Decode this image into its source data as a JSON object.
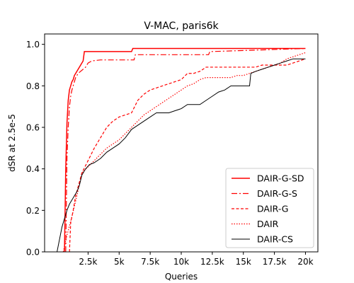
{
  "chart_data": {
    "type": "line",
    "title": "V-MAC, paris6k",
    "xlabel": "Queries",
    "ylabel": "dSR at 2.5e-5",
    "xlim": [
      -1000,
      21000
    ],
    "ylim": [
      0.0,
      1.05
    ],
    "x_ticks": [
      {
        "value": 2500,
        "label": "2.5k"
      },
      {
        "value": 5000,
        "label": "5k"
      },
      {
        "value": 7500,
        "label": "7.5k"
      },
      {
        "value": 10000,
        "label": "10k"
      },
      {
        "value": 12500,
        "label": "12.5k"
      },
      {
        "value": 15000,
        "label": "15k"
      },
      {
        "value": 17500,
        "label": "17.5k"
      },
      {
        "value": 20000,
        "label": "20k"
      }
    ],
    "y_ticks": [
      {
        "value": 0.0,
        "label": "0.0"
      },
      {
        "value": 0.2,
        "label": "0.2"
      },
      {
        "value": 0.4,
        "label": "0.4"
      },
      {
        "value": 0.6,
        "label": "0.6"
      },
      {
        "value": 0.8,
        "label": "0.8"
      },
      {
        "value": 1.0,
        "label": "1.0"
      }
    ],
    "grid": false,
    "legend_position": "lower right",
    "series": [
      {
        "name": "DAIR-G-SD",
        "color": "#ff0000",
        "dash": "solid",
        "width": 1.5,
        "x": [
          600,
          700,
          800,
          900,
          1000,
          1100,
          1200,
          1300,
          1400,
          1500,
          1700,
          1900,
          2100,
          2200,
          6000,
          6100,
          20000
        ],
        "y": [
          0.0,
          0.4,
          0.62,
          0.73,
          0.78,
          0.8,
          0.82,
          0.83,
          0.85,
          0.86,
          0.88,
          0.9,
          0.92,
          0.965,
          0.965,
          0.98,
          0.98
        ]
      },
      {
        "name": "DAIR-G-S",
        "color": "#ff0000",
        "dash": "8,3,2,3",
        "width": 1.2,
        "x": [
          700,
          800,
          900,
          1000,
          1100,
          1200,
          1300,
          1400,
          1500,
          1700,
          1900,
          2100,
          2300,
          2500,
          2800,
          3500,
          6200,
          6300,
          12200,
          12300,
          20000
        ],
        "y": [
          0.0,
          0.45,
          0.6,
          0.7,
          0.75,
          0.78,
          0.8,
          0.82,
          0.84,
          0.86,
          0.87,
          0.88,
          0.89,
          0.91,
          0.92,
          0.925,
          0.925,
          0.95,
          0.95,
          0.965,
          0.98
        ]
      },
      {
        "name": "DAIR-G",
        "color": "#ff0000",
        "dash": "4,2.5",
        "width": 1.2,
        "x": [
          1000,
          1100,
          1300,
          1500,
          2000,
          2500,
          3000,
          3500,
          4000,
          4500,
          5000,
          5500,
          6000,
          6500,
          7000,
          7500,
          8000,
          8500,
          9000,
          9500,
          10000,
          10500,
          11000,
          11500,
          12000,
          12500,
          13000,
          13500,
          14000,
          14500,
          15000,
          15500,
          16000,
          16500,
          17000,
          17500,
          18000,
          18500,
          19000,
          19500,
          20000
        ],
        "y": [
          0.0,
          0.14,
          0.2,
          0.27,
          0.38,
          0.44,
          0.5,
          0.55,
          0.6,
          0.63,
          0.65,
          0.66,
          0.67,
          0.73,
          0.76,
          0.78,
          0.79,
          0.8,
          0.81,
          0.82,
          0.83,
          0.86,
          0.86,
          0.87,
          0.89,
          0.89,
          0.89,
          0.89,
          0.89,
          0.89,
          0.89,
          0.89,
          0.89,
          0.9,
          0.9,
          0.9,
          0.9,
          0.9,
          0.91,
          0.92,
          0.93
        ]
      },
      {
        "name": "DAIR",
        "color": "#ff0000",
        "dash": "1.5,2",
        "width": 1.2,
        "x": [
          500,
          800,
          1200,
          1600,
          2000,
          2500,
          3000,
          3500,
          4000,
          4500,
          5000,
          5500,
          6000,
          6500,
          7000,
          7500,
          8000,
          8500,
          9000,
          9500,
          10000,
          10500,
          11000,
          11500,
          12000,
          12500,
          13000,
          13500,
          14000,
          14500,
          15000,
          15500,
          16000,
          16500,
          17000,
          17500,
          18000,
          18500,
          19000,
          19500,
          20000
        ],
        "y": [
          0.0,
          0.08,
          0.17,
          0.27,
          0.38,
          0.41,
          0.44,
          0.47,
          0.5,
          0.52,
          0.54,
          0.57,
          0.6,
          0.63,
          0.66,
          0.68,
          0.7,
          0.72,
          0.74,
          0.76,
          0.78,
          0.8,
          0.81,
          0.83,
          0.84,
          0.84,
          0.84,
          0.84,
          0.84,
          0.85,
          0.85,
          0.86,
          0.87,
          0.88,
          0.89,
          0.9,
          0.91,
          0.93,
          0.94,
          0.95,
          0.96
        ]
      },
      {
        "name": "DAIR-CS",
        "color": "#000000",
        "dash": "solid",
        "width": 1.0,
        "x": [
          0,
          200,
          400,
          600,
          800,
          1000,
          1200,
          1400,
          1600,
          1800,
          2000,
          2300,
          2600,
          3000,
          3500,
          4000,
          4500,
          5000,
          5500,
          6000,
          6500,
          7000,
          7500,
          8000,
          8500,
          9000,
          9500,
          10000,
          10500,
          11000,
          11500,
          12000,
          12500,
          13000,
          13500,
          14000,
          14500,
          15000,
          15500,
          15600,
          16000,
          16500,
          17000,
          17500,
          18000,
          18500,
          19000,
          19500,
          20000
        ],
        "y": [
          0.0,
          0.06,
          0.12,
          0.16,
          0.2,
          0.23,
          0.25,
          0.27,
          0.29,
          0.32,
          0.37,
          0.4,
          0.42,
          0.43,
          0.45,
          0.48,
          0.5,
          0.52,
          0.55,
          0.59,
          0.61,
          0.63,
          0.65,
          0.67,
          0.67,
          0.67,
          0.68,
          0.69,
          0.71,
          0.71,
          0.71,
          0.73,
          0.75,
          0.77,
          0.78,
          0.8,
          0.8,
          0.8,
          0.8,
          0.86,
          0.87,
          0.88,
          0.89,
          0.9,
          0.91,
          0.92,
          0.93,
          0.93,
          0.93
        ]
      }
    ]
  }
}
